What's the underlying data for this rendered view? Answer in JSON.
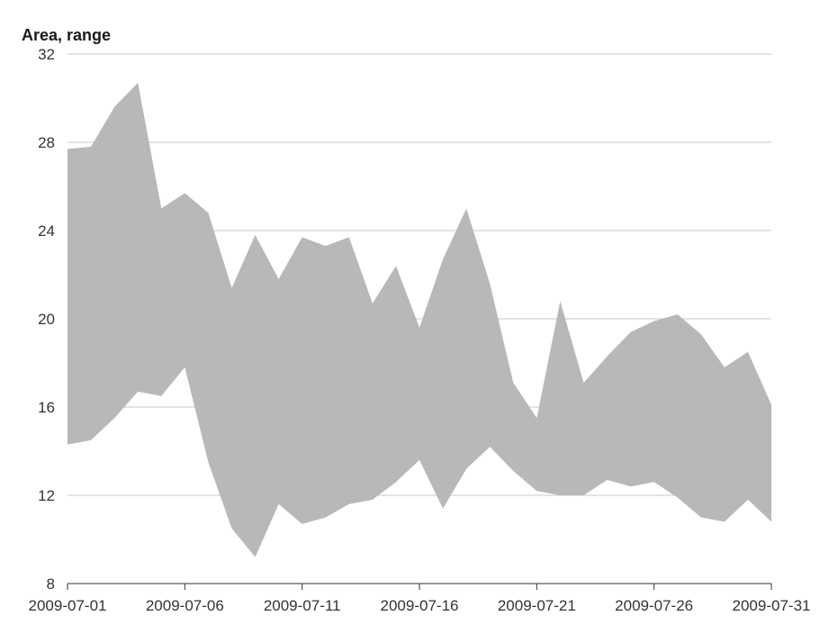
{
  "chart_data": {
    "type": "area",
    "subtype": "range",
    "title": "",
    "xlabel": "",
    "ylabel": "Area, range",
    "ylim": [
      8,
      32
    ],
    "yticks": [
      8,
      12,
      16,
      20,
      24,
      28,
      32
    ],
    "xticks": [
      "2009-07-01",
      "2009-07-06",
      "2009-07-11",
      "2009-07-16",
      "2009-07-21",
      "2009-07-26",
      "2009-07-31"
    ],
    "grid": true,
    "legend": "none",
    "color": "#b8b8b8",
    "x": [
      "2009-07-01",
      "2009-07-02",
      "2009-07-03",
      "2009-07-04",
      "2009-07-05",
      "2009-07-06",
      "2009-07-07",
      "2009-07-08",
      "2009-07-09",
      "2009-07-10",
      "2009-07-11",
      "2009-07-12",
      "2009-07-13",
      "2009-07-14",
      "2009-07-15",
      "2009-07-16",
      "2009-07-17",
      "2009-07-18",
      "2009-07-19",
      "2009-07-20",
      "2009-07-21",
      "2009-07-22",
      "2009-07-23",
      "2009-07-24",
      "2009-07-25",
      "2009-07-26",
      "2009-07-27",
      "2009-07-28",
      "2009-07-29",
      "2009-07-30",
      "2009-07-31"
    ],
    "low": [
      14.3,
      14.5,
      15.5,
      16.7,
      16.5,
      17.8,
      13.5,
      10.5,
      9.2,
      11.6,
      10.7,
      11.0,
      11.6,
      11.8,
      12.6,
      13.6,
      11.4,
      13.2,
      14.2,
      13.1,
      12.2,
      12.0,
      12.0,
      12.7,
      12.4,
      12.6,
      11.9,
      11.0,
      10.8,
      11.8,
      10.8
    ],
    "high": [
      27.7,
      27.8,
      29.6,
      30.7,
      25.0,
      25.7,
      24.8,
      21.4,
      23.8,
      21.8,
      23.7,
      23.3,
      23.7,
      20.7,
      22.4,
      19.6,
      22.7,
      25.0,
      21.6,
      17.1,
      15.5,
      20.8,
      17.1,
      18.3,
      19.4,
      19.9,
      20.2,
      19.3,
      17.8,
      18.5,
      16.1
    ]
  }
}
